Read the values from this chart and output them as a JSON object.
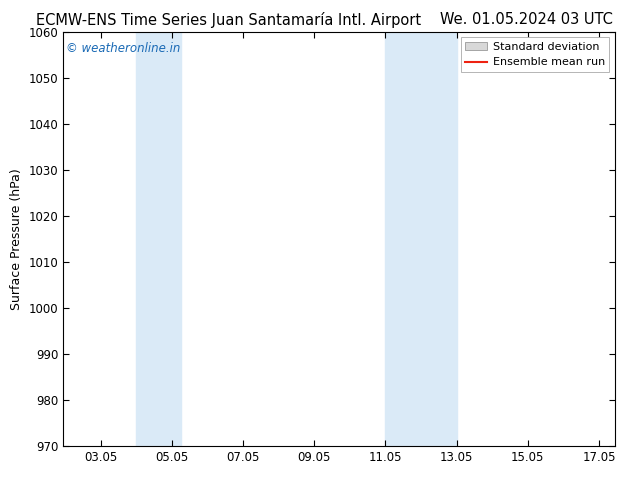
{
  "title_left": "ECMW-ENS Time Series Juan Santamaría Intl. Airport",
  "title_right": "We. 01.05.2024 03 UTC",
  "ylabel": "Surface Pressure (hPa)",
  "ylim": [
    970,
    1060
  ],
  "yticks": [
    970,
    980,
    990,
    1000,
    1010,
    1020,
    1030,
    1040,
    1050,
    1060
  ],
  "xlim_start": 2.0,
  "xlim_end": 17.5,
  "xticks": [
    3.05,
    5.05,
    7.05,
    9.05,
    11.05,
    13.05,
    15.05,
    17.05
  ],
  "xtick_labels": [
    "03.05",
    "05.05",
    "07.05",
    "09.05",
    "11.05",
    "13.05",
    "15.05",
    "17.05"
  ],
  "shaded_bands": [
    {
      "x_start": 4.05,
      "x_end": 5.3
    },
    {
      "x_start": 11.05,
      "x_end": 13.05
    }
  ],
  "shade_color": "#daeaf7",
  "background_color": "#ffffff",
  "watermark_text": "© weatheronline.in",
  "watermark_color": "#1a6ab5",
  "legend_std_color": "#d8d8d8",
  "legend_std_edge": "#999999",
  "legend_mean_color": "#ee2211",
  "title_fontsize": 10.5,
  "axis_label_fontsize": 9,
  "tick_fontsize": 8.5,
  "watermark_fontsize": 8.5,
  "legend_fontsize": 8
}
